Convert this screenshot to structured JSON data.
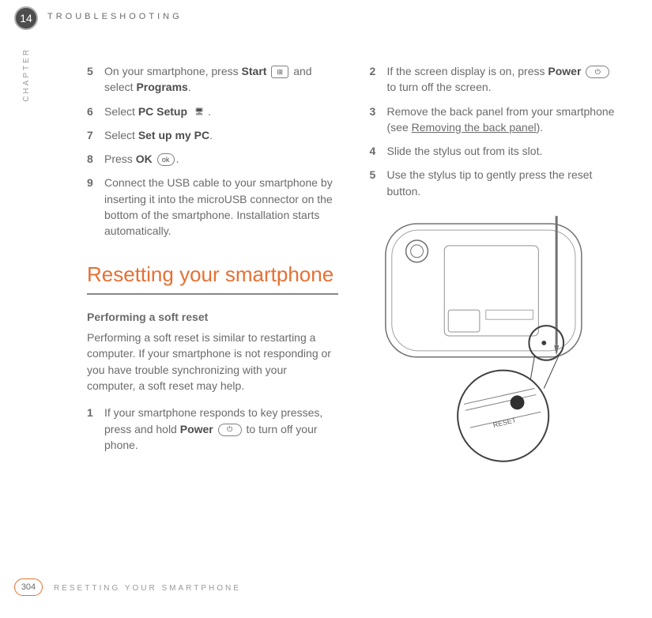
{
  "header": {
    "chapter_number": "14",
    "chapter_title": "TROUBLESHOOTING",
    "vertical_label": "CHAPTER"
  },
  "left_column": {
    "steps_a": [
      {
        "num": "5",
        "html": "On your smartphone, press <b>Start</b> {win} and select <b>Programs</b>."
      },
      {
        "num": "6",
        "html": "Select <b>PC Setup</b> {pc}."
      },
      {
        "num": "7",
        "html": "Select <b>Set up my PC</b>."
      },
      {
        "num": "8",
        "html": "Press <b>OK</b> {ok}."
      },
      {
        "num": "9",
        "html": "Connect the USB cable to your smartphone by inserting it into the microUSB connector on the bottom of the smartphone. Installation starts automatically."
      }
    ],
    "section_heading": "Resetting your smartphone",
    "sub_heading": "Performing a soft reset",
    "body_para": "Performing a soft reset is similar to restarting a computer. If your smartphone is not responding or you have trouble synchronizing with your computer, a soft reset may help.",
    "steps_b": [
      {
        "num": "1",
        "html": "If your smartphone responds to key presses, press and hold <b>Power</b> {power} to turn off your phone."
      }
    ]
  },
  "right_column": {
    "steps": [
      {
        "num": "2",
        "html": "If the screen display is on, press <b>Power</b> {power} to turn off the screen."
      },
      {
        "num": "3",
        "html": "Remove the back panel from your smartphone (see <span class='underline'>Removing the back panel</span>)."
      },
      {
        "num": "4",
        "html": "Slide the stylus out from its slot."
      },
      {
        "num": "5",
        "html": "Use the stylus tip to gently press the reset button."
      }
    ],
    "figure_label": "RESET"
  },
  "footer": {
    "page_number": "304",
    "footer_title": "RESETTING YOUR SMARTPHONE"
  },
  "icons": {
    "win": "⊞",
    "pc": "🖥",
    "ok": "ok",
    "power": "⏻"
  },
  "colors": {
    "accent": "#e67033",
    "text": "#6b6b6b",
    "dark": "#4d4d4d",
    "rule": "#888888"
  }
}
